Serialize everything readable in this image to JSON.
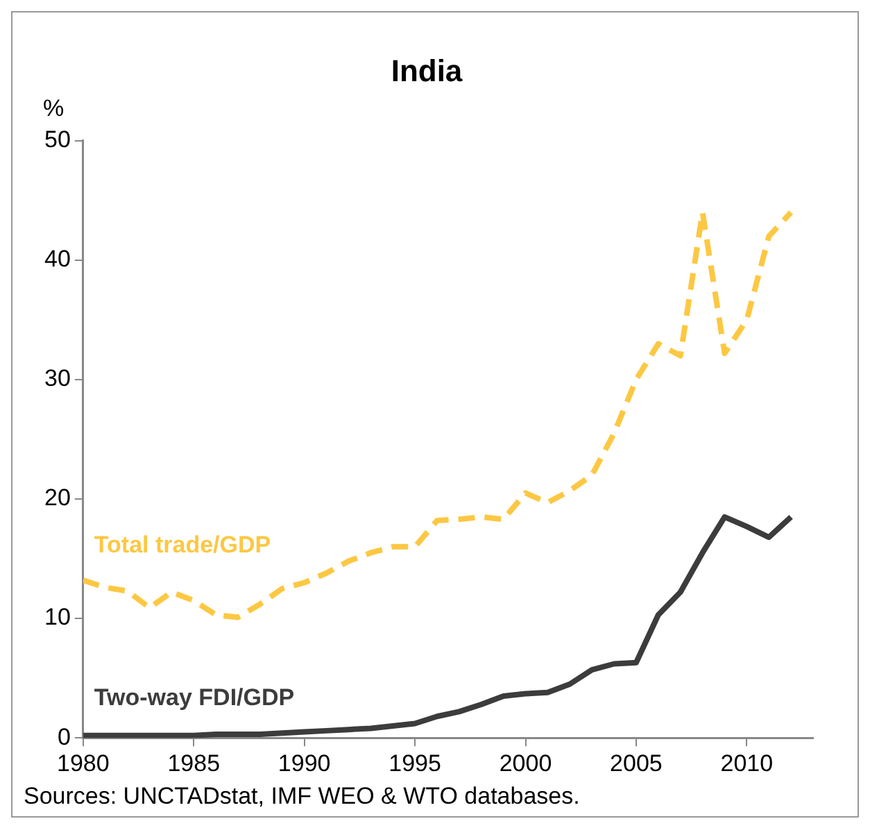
{
  "chart_data": {
    "type": "line",
    "title": "India",
    "ylabel": "%",
    "x": [
      1980,
      1981,
      1982,
      1983,
      1984,
      1985,
      1986,
      1987,
      1988,
      1989,
      1990,
      1991,
      1992,
      1993,
      1994,
      1995,
      1996,
      1997,
      1998,
      1999,
      2000,
      2001,
      2002,
      2003,
      2004,
      2005,
      2006,
      2007,
      2008,
      2009,
      2010,
      2011,
      2012
    ],
    "series": [
      {
        "name": "Total trade/GDP",
        "color": "#fcc843",
        "line_style": "dashed",
        "values": [
          13.2,
          12.6,
          12.3,
          10.9,
          12.2,
          11.5,
          10.3,
          10.1,
          11.2,
          12.5,
          13.0,
          13.8,
          14.8,
          15.5,
          16.0,
          16.0,
          18.2,
          18.3,
          18.5,
          18.3,
          20.5,
          19.7,
          20.7,
          22.0,
          25.5,
          30.0,
          33.0,
          32.0,
          44.0,
          32.2,
          35.0,
          42.0,
          44.0
        ]
      },
      {
        "name": "Two-way FDI/GDP",
        "color": "#3c3c3c",
        "line_style": "solid",
        "values": [
          0.2,
          0.2,
          0.2,
          0.2,
          0.2,
          0.2,
          0.3,
          0.3,
          0.3,
          0.4,
          0.5,
          0.6,
          0.7,
          0.8,
          1.0,
          1.2,
          1.8,
          2.2,
          2.8,
          3.5,
          3.7,
          3.8,
          4.5,
          5.7,
          6.2,
          6.3,
          10.3,
          12.2,
          15.5,
          18.5,
          17.7,
          16.8,
          18.5
        ]
      }
    ],
    "xlim": [
      1980,
      2013
    ],
    "ylim": [
      0,
      50
    ],
    "xticks": [
      1980,
      1985,
      1990,
      1995,
      2000,
      2005,
      2010
    ],
    "yticks": [
      0,
      10,
      20,
      30,
      40,
      50
    ],
    "grid": false,
    "legend": false,
    "marker": "none",
    "annotations": [
      "Sources: UNCTADstat, IMF WEO & WTO databases."
    ]
  }
}
